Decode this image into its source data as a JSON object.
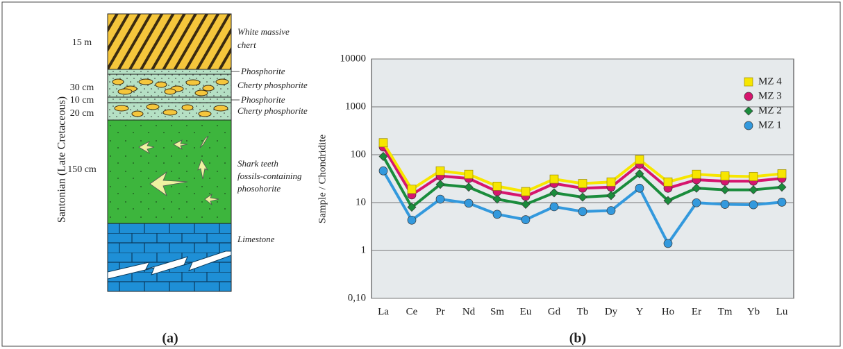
{
  "column": {
    "axis_label": "Santonian (Late Cretaceous)",
    "thickness": [
      "15 m",
      "30 cm",
      "10 cm",
      "20 cm",
      "150 cm"
    ],
    "layers": [
      [
        "White massive",
        "chert"
      ],
      [
        "Phosphorite"
      ],
      [
        "Cherty phosphorite"
      ],
      [
        "Phosphorite"
      ],
      [
        "Cherty phosphorite"
      ],
      [
        "Shark teeth",
        "fossils-containing",
        "phosohorite"
      ],
      [
        "Limestone"
      ]
    ]
  },
  "panel_labels": [
    "(a)",
    "(b)"
  ],
  "chart_data": {
    "type": "line",
    "ylabel": "Sample / Chondridite",
    "log_scale": true,
    "grid": true,
    "legend": "upper right",
    "categories": [
      "La",
      "Ce",
      "Pr",
      "Nd",
      "Sm",
      "Eu",
      "Gd",
      "Tb",
      "Dy",
      "Y",
      "Ho",
      "Er",
      "Tm",
      "Yb",
      "Lu"
    ],
    "ylim": [
      0.1,
      10000
    ],
    "yticks": [
      {
        "value": 0.1,
        "label": "0,10"
      },
      1,
      10,
      100,
      1000,
      10000
    ],
    "series": [
      {
        "name": "MZ 4",
        "color": "#f7e600",
        "marker": "square",
        "values": [
          178,
          19,
          46,
          39,
          22,
          17,
          31,
          25,
          27,
          79,
          27,
          39,
          36,
          35,
          40
        ]
      },
      {
        "name": "MZ 3",
        "color": "#d6156e",
        "marker": "circle",
        "values": [
          145,
          14.5,
          36,
          32,
          17,
          13.5,
          25,
          20,
          21,
          63,
          20,
          30,
          28,
          28,
          32
        ]
      },
      {
        "name": "MZ 2",
        "color": "#1a8c3c",
        "marker": "diamond",
        "values": [
          92,
          8,
          24,
          21,
          11.8,
          9.2,
          16,
          13,
          14,
          40,
          11,
          20,
          18.5,
          18.5,
          21
        ]
      },
      {
        "name": "MZ 1",
        "color": "#3399dd",
        "marker": "circle",
        "values": [
          46,
          4.3,
          11.8,
          9.7,
          5.7,
          4.4,
          8.2,
          6.5,
          6.8,
          20,
          1.4,
          9.9,
          9.2,
          9,
          10.2
        ]
      }
    ]
  }
}
